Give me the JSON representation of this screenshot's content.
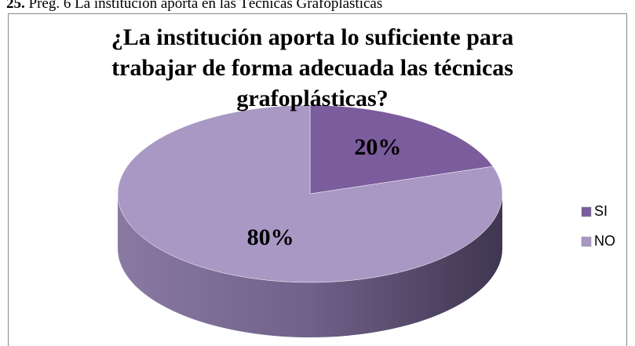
{
  "caption": {
    "number": "25.",
    "text": "Preg. 6 La institución aporta en las Técnicas Grafoplásticas"
  },
  "chart_data": {
    "type": "pie",
    "title": [
      "¿La institución aporta lo suficiente para",
      "trabajar de forma adecuada las técnicas",
      "grafoplásticas?"
    ],
    "categories": [
      "SI",
      "NO"
    ],
    "values": [
      20,
      80
    ],
    "value_labels": [
      "20%",
      "80%"
    ],
    "colors": [
      "#7b5c9c",
      "#a898c3"
    ],
    "side_colors": [
      "#4e3a66",
      "#6f6189"
    ],
    "legend": "right",
    "style": "3d"
  }
}
